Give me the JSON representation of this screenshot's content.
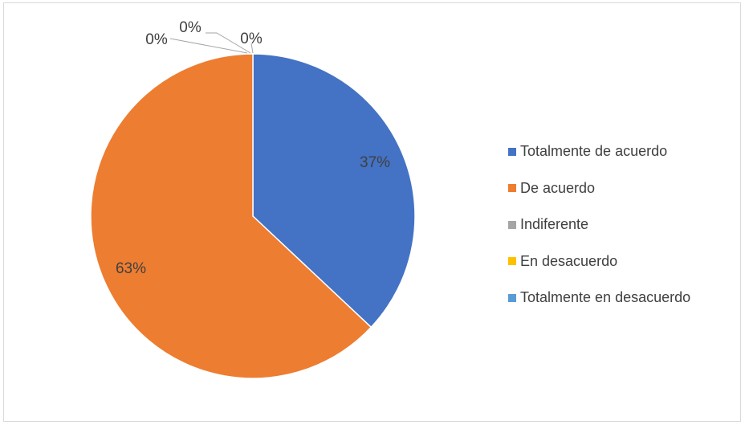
{
  "chart_data": {
    "type": "pie",
    "title": "",
    "legend_position": "right",
    "slices": [
      {
        "label": "Totalmente de acuerdo",
        "value": 37,
        "data_label": "37%",
        "color": "#4472C4"
      },
      {
        "label": "De acuerdo",
        "value": 63,
        "data_label": "63%",
        "color": "#ED7D31"
      },
      {
        "label": "Indiferente",
        "value": 0,
        "data_label": "0%",
        "color": "#A5A5A5"
      },
      {
        "label": "En desacuerdo",
        "value": 0,
        "data_label": "0%",
        "color": "#FFC000"
      },
      {
        "label": "Totalmente en desacuerdo",
        "value": 0,
        "data_label": "0%",
        "color": "#5B9BD5"
      }
    ]
  }
}
